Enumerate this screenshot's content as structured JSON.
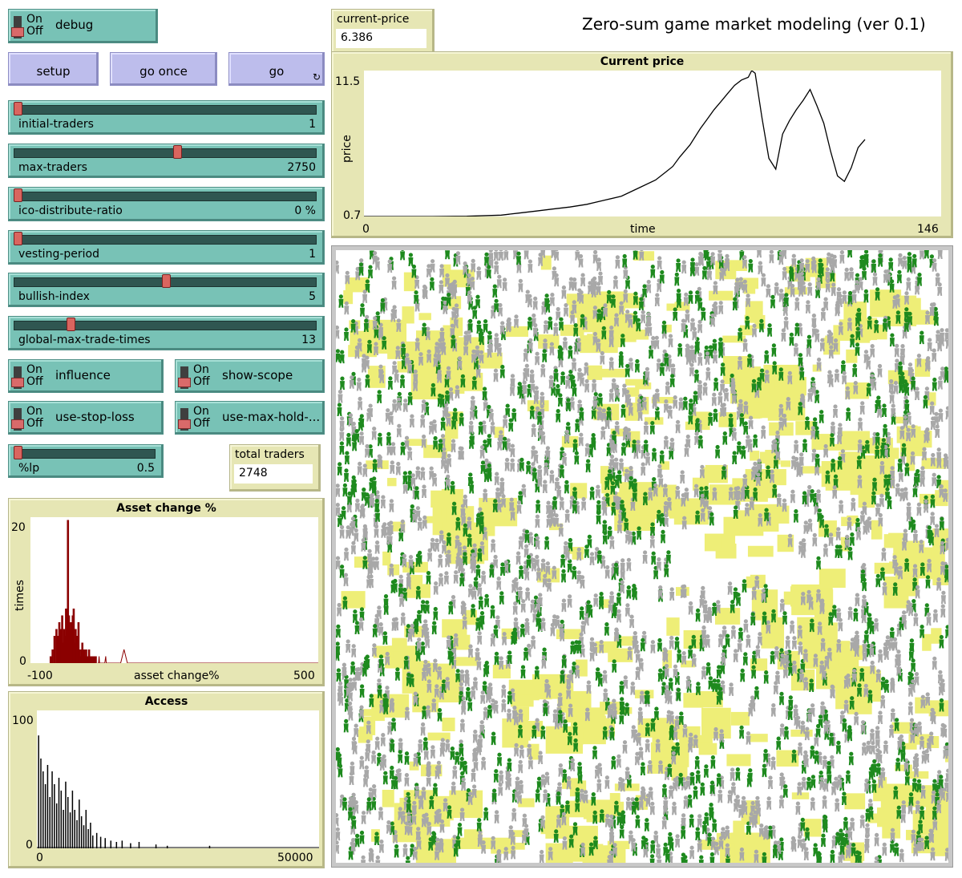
{
  "app_title": "Zero-sum game market modeling (ver 0.1)",
  "switches": {
    "on_label": "On",
    "off_label": "Off",
    "debug": "debug",
    "influence": "influence",
    "show_scope": "show-scope",
    "use_stop_loss": "use-stop-loss",
    "use_max_hold": "use-max-hold-..."
  },
  "buttons": {
    "setup": "setup",
    "go_once": "go once",
    "go": "go",
    "forever_icon": "↻"
  },
  "sliders": [
    {
      "name": "initial-traders",
      "value": "1",
      "level": 0.0
    },
    {
      "name": "max-traders",
      "value": "2750",
      "level": 0.54
    },
    {
      "name": "ico-distribute-ratio",
      "value": "0 %",
      "level": 0.0
    },
    {
      "name": "vesting-period",
      "value": "1",
      "level": 0.0
    },
    {
      "name": "bullish-index",
      "value": "5",
      "level": 0.5
    },
    {
      "name": "global-max-trade-times",
      "value": "13",
      "level": 0.18
    }
  ],
  "lp_slider": {
    "name": "%lp",
    "value": "0.5",
    "level": 0.0
  },
  "monitors": {
    "current_price_label": "current-price",
    "current_price_value": "6.386",
    "total_traders_label": "total traders",
    "total_traders_value": "2748"
  },
  "plots": {
    "price": {
      "title": "Current price",
      "ylabel": "price",
      "xlabel": "time",
      "ymin": "0.7",
      "ymax": "11.5",
      "xmin": "0",
      "xmax": "146"
    },
    "asset": {
      "title": "Asset change %",
      "ylabel": "times",
      "xlabel": "asset change%",
      "ymin": "0",
      "ymax": "20",
      "xmin": "-100",
      "xmax": "500"
    },
    "access": {
      "title": "Access",
      "ymin": "0",
      "ymax": "100",
      "xmin": "0",
      "xmax": "50000"
    }
  },
  "chart_data": [
    {
      "type": "line",
      "title": "Current price",
      "xlabel": "time",
      "ylabel": "price",
      "xlim": [
        0,
        146
      ],
      "ylim": [
        0.7,
        11.5
      ],
      "color": "#000000",
      "x": [
        0,
        10,
        20,
        30,
        40,
        45,
        50,
        55,
        60,
        65,
        70,
        75,
        80,
        85,
        88,
        90,
        92,
        95,
        98,
        100,
        102,
        104,
        106,
        108,
        110,
        112,
        113,
        114,
        116,
        118,
        120,
        122,
        124,
        126,
        128,
        130,
        132,
        134,
        136,
        138,
        140,
        142,
        144,
        146
      ],
      "y": [
        0.7,
        0.7,
        0.7,
        0.72,
        0.8,
        0.95,
        1.1,
        1.25,
        1.4,
        1.6,
        1.9,
        2.2,
        2.8,
        3.4,
        4.0,
        4.4,
        5.1,
        6.0,
        7.2,
        7.9,
        8.6,
        9.2,
        9.8,
        10.4,
        10.8,
        11.0,
        11.5,
        11.3,
        8.0,
        5.0,
        4.2,
        6.8,
        7.8,
        8.6,
        9.3,
        10.1,
        8.9,
        7.6,
        5.5,
        3.7,
        3.3,
        4.3,
        5.8,
        6.4
      ]
    },
    {
      "type": "bar",
      "title": "Asset change %",
      "xlabel": "asset change%",
      "ylabel": "times",
      "xlim": [
        -100,
        500
      ],
      "ylim": [
        0,
        20
      ],
      "color": "#8b0000",
      "x": [
        -60,
        -56,
        -52,
        -48,
        -45,
        -42,
        -40,
        -38,
        -36,
        -34,
        -32,
        -30,
        -28,
        -26,
        -24,
        -22,
        -20,
        -18,
        -16,
        -14,
        -12,
        -10,
        -8,
        -6,
        -4,
        -2,
        0,
        2,
        4,
        6,
        8,
        10,
        12,
        14,
        16,
        18,
        20,
        22,
        24,
        26,
        28,
        30,
        32,
        34
      ],
      "values": [
        1,
        2,
        4,
        5,
        4,
        6,
        5,
        4,
        7,
        3,
        5,
        4,
        8,
        6,
        21,
        7,
        5,
        6,
        4,
        7,
        8,
        3,
        5,
        2,
        4,
        6,
        2,
        1,
        2,
        3,
        1,
        2,
        1,
        2,
        1,
        1,
        2,
        1,
        1,
        1,
        0,
        1,
        1,
        1
      ]
    },
    {
      "type": "bar",
      "title": "Access",
      "xlim": [
        0,
        50000
      ],
      "ylim": [
        0,
        100
      ],
      "color": "#000000",
      "x": [
        200,
        600,
        1000,
        1400,
        1800,
        2200,
        2600,
        3000,
        3400,
        3800,
        4200,
        4600,
        5000,
        5400,
        5800,
        6200,
        6600,
        7000,
        7400,
        7800,
        8200,
        8600,
        9000,
        9400,
        9800,
        10500,
        11200,
        12000,
        13000,
        14000,
        15000,
        16500,
        18000,
        21000,
        23000,
        30500
      ],
      "values": [
        88,
        70,
        60,
        50,
        65,
        40,
        60,
        50,
        35,
        55,
        45,
        30,
        52,
        40,
        28,
        45,
        30,
        22,
        38,
        25,
        18,
        30,
        15,
        20,
        10,
        12,
        9,
        8,
        6,
        5,
        6,
        4,
        5,
        3,
        2,
        2
      ]
    }
  ],
  "world": {
    "bg_color": "#ffffff",
    "patch_color": "#eeee77",
    "turtle_colors": [
      "#1e8a1e",
      "#a8a8a8"
    ]
  }
}
